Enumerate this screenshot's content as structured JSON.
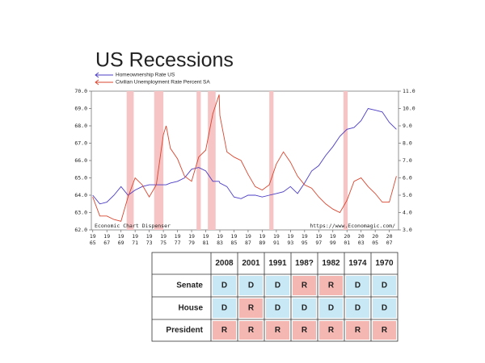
{
  "chart_data": {
    "type": "line",
    "title": "US Recessions",
    "x": [
      1965,
      1966,
      1967,
      1968,
      1969,
      1970,
      1971,
      1972,
      1973,
      1974,
      1975,
      1975.4,
      1976,
      1977,
      1978,
      1979,
      1980,
      1981,
      1982,
      1982.9,
      1983,
      1984,
      1985,
      1986,
      1987,
      1988,
      1989,
      1990,
      1991,
      1992,
      1993,
      1994,
      1995,
      1996,
      1997,
      1998,
      1999,
      2000,
      2001,
      2002,
      2003,
      2004,
      2005,
      2006,
      2007,
      2008
    ],
    "series": [
      {
        "name": "Homeownership Rate US",
        "color": "#4b3cc4",
        "values": [
          64.0,
          63.5,
          63.6,
          64.0,
          64.5,
          64.0,
          64.3,
          64.5,
          64.6,
          64.6,
          64.6,
          64.6,
          64.7,
          64.8,
          65.0,
          65.5,
          65.6,
          65.4,
          64.8,
          64.8,
          64.7,
          64.5,
          63.9,
          63.8,
          64.0,
          64.0,
          63.9,
          64.0,
          64.1,
          64.2,
          64.5,
          64.1,
          64.7,
          65.4,
          65.7,
          66.3,
          66.8,
          67.4,
          67.8,
          67.9,
          68.3,
          69.0,
          68.9,
          68.8,
          68.2,
          67.8
        ]
      },
      {
        "name": "Civilian Unemployment Rate Percent SA",
        "color": "#d9452f",
        "axis": "y2",
        "values": [
          4.9,
          3.8,
          3.8,
          3.6,
          3.5,
          4.9,
          6.0,
          5.6,
          4.9,
          5.6,
          8.5,
          9.0,
          7.7,
          7.1,
          6.1,
          5.8,
          7.2,
          7.6,
          9.7,
          10.8,
          9.6,
          7.5,
          7.2,
          7.0,
          6.2,
          5.5,
          5.3,
          5.6,
          6.8,
          7.5,
          6.9,
          6.1,
          5.6,
          5.4,
          4.9,
          4.5,
          4.2,
          4.0,
          4.7,
          5.8,
          6.0,
          5.5,
          5.1,
          4.6,
          4.6,
          6.1
        ]
      }
    ],
    "xlim": [
      1964.8,
      2008.3
    ],
    "xticks": [
      {
        "value": 1965,
        "label": [
          "19",
          "65"
        ]
      },
      {
        "value": 1967,
        "label": [
          "19",
          "67"
        ]
      },
      {
        "value": 1969,
        "label": [
          "19",
          "69"
        ]
      },
      {
        "value": 1971,
        "label": [
          "19",
          "71"
        ]
      },
      {
        "value": 1973,
        "label": [
          "19",
          "73"
        ]
      },
      {
        "value": 1975,
        "label": [
          "19",
          "75"
        ]
      },
      {
        "value": 1977,
        "label": [
          "19",
          "77"
        ]
      },
      {
        "value": 1979,
        "label": [
          "19",
          "79"
        ]
      },
      {
        "value": 1981,
        "label": [
          "19",
          "81"
        ]
      },
      {
        "value": 1983,
        "label": [
          "19",
          "83"
        ]
      },
      {
        "value": 1985,
        "label": [
          "19",
          "85"
        ]
      },
      {
        "value": 1987,
        "label": [
          "19",
          "87"
        ]
      },
      {
        "value": 1989,
        "label": [
          "19",
          "89"
        ]
      },
      {
        "value": 1991,
        "label": [
          "19",
          "91"
        ]
      },
      {
        "value": 1993,
        "label": [
          "19",
          "93"
        ]
      },
      {
        "value": 1995,
        "label": [
          "19",
          "95"
        ]
      },
      {
        "value": 1997,
        "label": [
          "19",
          "97"
        ]
      },
      {
        "value": 1999,
        "label": [
          "19",
          "99"
        ]
      },
      {
        "value": 2001,
        "label": [
          "20",
          "01"
        ]
      },
      {
        "value": 2003,
        "label": [
          "20",
          "03"
        ]
      },
      {
        "value": 2005,
        "label": [
          "20",
          "05"
        ]
      },
      {
        "value": 2007,
        "label": [
          "20",
          "07"
        ]
      }
    ],
    "ylim": [
      62,
      70
    ],
    "yticks": [
      {
        "value": 62,
        "label": "62.0"
      },
      {
        "value": 63,
        "label": "63.0"
      },
      {
        "value": 64,
        "label": "64.0"
      },
      {
        "value": 65,
        "label": "65.0"
      },
      {
        "value": 66,
        "label": "66.0"
      },
      {
        "value": 67,
        "label": "67.0"
      },
      {
        "value": 68,
        "label": "68.0"
      },
      {
        "value": 69,
        "label": "69.0"
      },
      {
        "value": 70,
        "label": "70.0"
      }
    ],
    "y2lim": [
      3,
      11
    ],
    "y2ticks": [
      {
        "value": 3,
        "label": "3.0"
      },
      {
        "value": 4,
        "label": "4.0"
      },
      {
        "value": 5,
        "label": "5.0"
      },
      {
        "value": 6,
        "label": "6.0"
      },
      {
        "value": 7,
        "label": "7.0"
      },
      {
        "value": 8,
        "label": "8.0"
      },
      {
        "value": 9,
        "label": "9.0"
      },
      {
        "value": 10,
        "label": "10.0"
      },
      {
        "value": 11,
        "label": "11.0"
      }
    ],
    "shaded_ranges": [
      [
        1969.8,
        1970.8
      ],
      [
        1973.7,
        1975.0
      ],
      [
        1979.7,
        1980.3
      ],
      [
        1981.3,
        1982.4
      ],
      [
        1990.0,
        1990.6
      ],
      [
        2000.5,
        2001.1
      ]
    ],
    "shade_color": "#f6c4c4",
    "annotations": [
      "Economic Chart Dispenser",
      "https://www.Economagic.com/"
    ]
  },
  "table": {
    "header": [
      "2008",
      "2001",
      "1991",
      "198?",
      "1982",
      "1974",
      "1970"
    ],
    "rows": [
      {
        "label": "Senate",
        "cells": [
          "D",
          "D",
          "D",
          "R",
          "R",
          "D",
          "D"
        ]
      },
      {
        "label": "House",
        "cells": [
          "D",
          "R",
          "D",
          "D",
          "D",
          "D",
          "D"
        ]
      },
      {
        "label": "President",
        "cells": [
          "R",
          "R",
          "R",
          "R",
          "R",
          "R",
          "R"
        ]
      }
    ],
    "colors": {
      "D": "#c8e8f6",
      "R": "#f5b7b2"
    }
  }
}
